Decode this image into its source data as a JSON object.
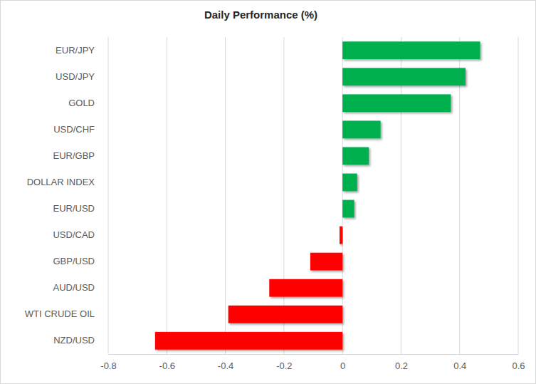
{
  "chart_data": {
    "type": "bar",
    "title": "Daily Performance (%)",
    "orientation": "horizontal",
    "categories": [
      "EUR/JPY",
      "USD/JPY",
      "GOLD",
      "USD/CHF",
      "EUR/GBP",
      "DOLLAR INDEX",
      "EUR/USD",
      "USD/CAD",
      "GBP/USD",
      "AUD/USD",
      "WTI CRUDE OIL",
      "NZD/USD"
    ],
    "values": [
      0.47,
      0.42,
      0.37,
      0.13,
      0.09,
      0.05,
      0.04,
      -0.01,
      -0.11,
      -0.25,
      -0.39,
      -0.64
    ],
    "colors": [
      "#00b050",
      "#00b050",
      "#00b050",
      "#00b050",
      "#00b050",
      "#00b050",
      "#00b050",
      "#ff0000",
      "#ff0000",
      "#ff0000",
      "#ff0000",
      "#ff0000"
    ],
    "xlim": [
      -0.8,
      0.6
    ],
    "xticks": [
      -0.8,
      -0.6,
      -0.4,
      -0.2,
      0,
      0.2,
      0.4,
      0.6
    ],
    "grid": true
  }
}
